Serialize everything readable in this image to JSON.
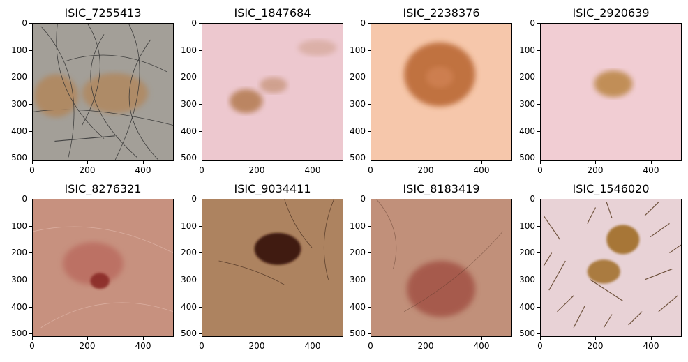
{
  "panels": [
    {
      "title": "ISIC_7255413",
      "x_ticks": [
        "0",
        "200",
        "400"
      ],
      "y_ticks": [
        "0",
        "100",
        "200",
        "300",
        "400",
        "500"
      ],
      "skin": "#a39f98",
      "lesion": "#b48352",
      "hair": "dense dark",
      "notes": "ruler"
    },
    {
      "title": "ISIC_1847684",
      "x_ticks": [
        "0",
        "200",
        "400"
      ],
      "y_ticks": [
        "0",
        "100",
        "200",
        "300",
        "400",
        "500"
      ],
      "skin": "#edc8cf",
      "lesion": "#b37a50"
    },
    {
      "title": "ISIC_2238376",
      "x_ticks": [
        "0",
        "200",
        "400"
      ],
      "y_ticks": [
        "0",
        "100",
        "200",
        "300",
        "400",
        "500"
      ],
      "skin": "#f6c7ab",
      "lesion": "#b35d28"
    },
    {
      "title": "ISIC_2920639",
      "x_ticks": [
        "0",
        "200",
        "400"
      ],
      "y_ticks": [
        "0",
        "100",
        "200",
        "300",
        "400",
        "500"
      ],
      "skin": "#f1cdd3",
      "lesion": "#b98442"
    },
    {
      "title": "ISIC_8276321",
      "x_ticks": [
        "0",
        "200",
        "400"
      ],
      "y_ticks": [
        "0",
        "100",
        "200",
        "300",
        "400",
        "500"
      ],
      "skin": "#c7917f",
      "lesion": "#8a2a25"
    },
    {
      "title": "ISIC_9034411",
      "x_ticks": [
        "0",
        "200",
        "400"
      ],
      "y_ticks": [
        "0",
        "100",
        "200",
        "300",
        "400",
        "500"
      ],
      "skin": "#ad8360",
      "lesion": "#3a140f"
    },
    {
      "title": "ISIC_8183419",
      "x_ticks": [
        "0",
        "200",
        "400"
      ],
      "y_ticks": [
        "0",
        "100",
        "200",
        "300",
        "400",
        "500"
      ],
      "skin": "#c1907a",
      "lesion": "#9e4a3c"
    },
    {
      "title": "ISIC_1546020",
      "x_ticks": [
        "0",
        "200",
        "400"
      ],
      "y_ticks": [
        "0",
        "100",
        "200",
        "300",
        "400",
        "500"
      ],
      "skin": "#e8d2d6",
      "lesion": "#a06d28",
      "hair": "dense brown"
    }
  ]
}
